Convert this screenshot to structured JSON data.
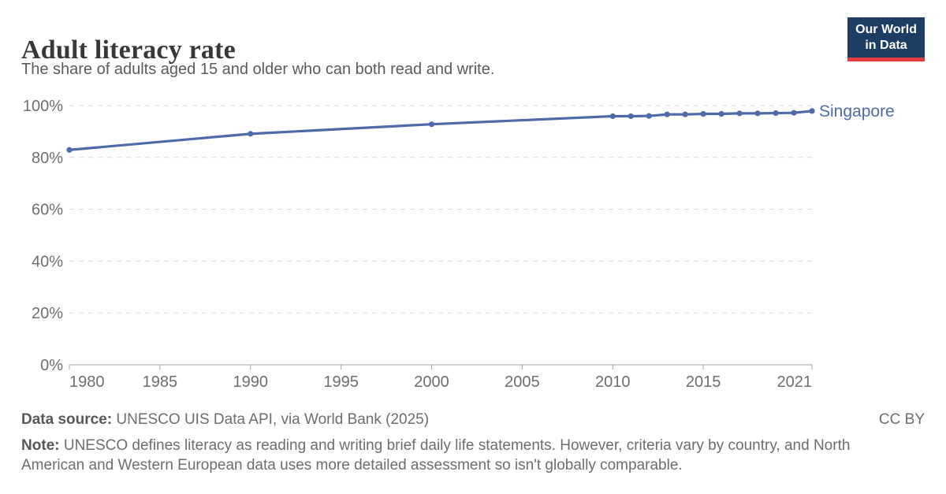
{
  "header": {
    "title": "Adult literacy rate",
    "subtitle": "The share of adults aged 15 and older who can both read and write."
  },
  "logo": {
    "line1": "Our World",
    "line2": "in Data",
    "bg_color": "#1d3d63",
    "accent_color": "#e23d3d"
  },
  "chart_data": {
    "type": "line",
    "title": "Adult literacy rate",
    "xlabel": "",
    "ylabel": "",
    "xlim": [
      1980,
      2021
    ],
    "ylim": [
      0,
      100
    ],
    "x_ticks": [
      1980,
      1985,
      1990,
      1995,
      2000,
      2005,
      2010,
      2015,
      2021
    ],
    "y_ticks": [
      0,
      20,
      40,
      60,
      80,
      100
    ],
    "y_tick_suffix": "%",
    "grid": "horizontal-dashed",
    "grid_color": "#dadada",
    "axis_color": "#a5a5a5",
    "tick_label_color": "#6e6e6e",
    "legend_position": "end-of-line-label",
    "series": [
      {
        "name": "Singapore",
        "color": "#4c6ba8",
        "x": [
          1980,
          1990,
          2000,
          2010,
          2011,
          2012,
          2013,
          2014,
          2015,
          2016,
          2017,
          2018,
          2019,
          2020,
          2021
        ],
        "values": [
          82.9,
          89.1,
          92.8,
          95.9,
          95.9,
          96.0,
          96.6,
          96.6,
          96.8,
          96.8,
          97.0,
          97.0,
          97.1,
          97.2,
          97.9
        ]
      }
    ]
  },
  "footer": {
    "source_label": "Data source:",
    "source_text": " UNESCO UIS Data API, via World Bank (2025)",
    "license": "CC BY",
    "note_label": "Note:",
    "note_text": " UNESCO defines literacy as reading and writing brief daily life statements. However, criteria vary by country, and North American and Western European data uses more detailed assessment so isn't globally comparable."
  }
}
